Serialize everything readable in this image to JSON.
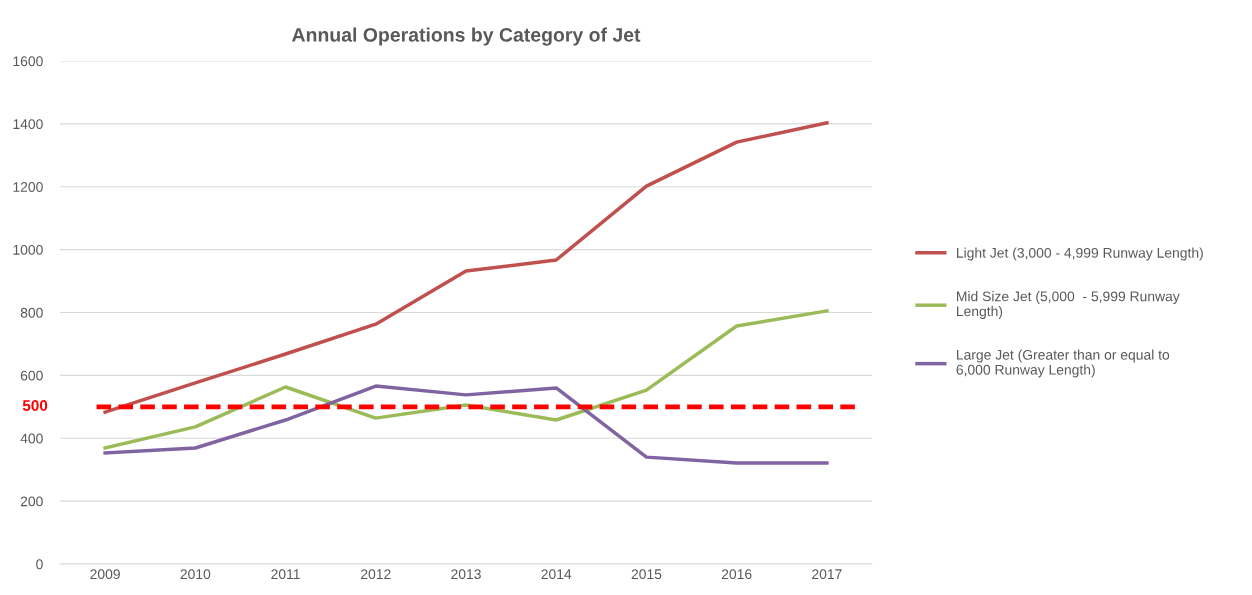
{
  "chart_data": {
    "type": "line",
    "title": "Annual Operations by Category of Jet",
    "categories": [
      "2009",
      "2010",
      "2011",
      "2012",
      "2013",
      "2014",
      "2015",
      "2016",
      "2017"
    ],
    "series": [
      {
        "name": "Light Jet (3,000 - 4,999 Runway Length)",
        "color": "#c0504d",
        "values": [
          483,
          576,
          668,
          763,
          932,
          967,
          1202,
          1342,
          1403
        ]
      },
      {
        "name": "Mid Size Jet (5,000  - 5,999 Runway Length)",
        "color": "#9bbb59",
        "values": [
          369,
          436,
          563,
          464,
          506,
          458,
          553,
          757,
          805
        ]
      },
      {
        "name": "Large Jet (Greater than or equal to 6,000 Runway Length)",
        "color": "#8064a2",
        "values": [
          353,
          369,
          458,
          566,
          538,
          560,
          340,
          321,
          321
        ]
      }
    ],
    "ylim": [
      0,
      1600
    ],
    "yticks": [
      0,
      200,
      400,
      600,
      800,
      1000,
      1200,
      1400,
      1600
    ],
    "grid": "y",
    "legend": "right",
    "marker": "none",
    "line_style": "solid",
    "ref_lines": [
      {
        "axis": "y",
        "value": 500,
        "label": "500",
        "color": "#ff0000",
        "line_style": "dashed"
      }
    ]
  }
}
